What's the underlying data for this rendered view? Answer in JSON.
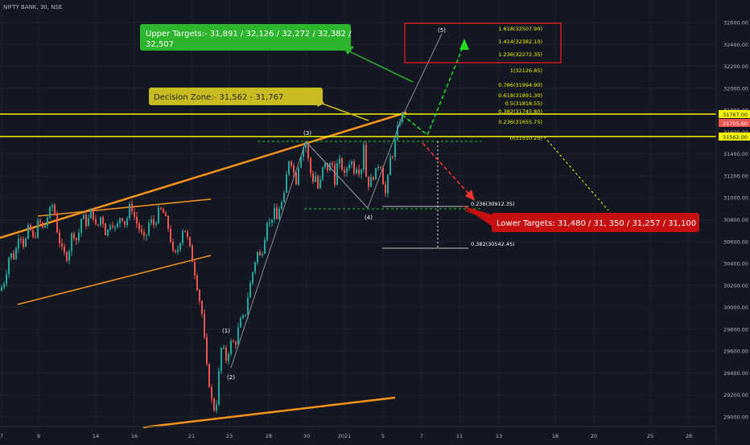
{
  "header": {
    "symbol_title": "NIFTY BANK, 30, NSE"
  },
  "colors": {
    "background": "#131722",
    "grid": "#1e2230",
    "up": "#26a69a",
    "down": "#ef5350",
    "channel": "#f7931a",
    "zone_line": "#f5f500",
    "wave_line": "#8a8f99",
    "green_arrow": "#22dd22",
    "red_arrow": "#ff3333",
    "upper_box_bg": "#2db52d",
    "decision_box_bg": "#c8bb22",
    "lower_box_bg": "#c60f10",
    "target_box_border": "#ff2020",
    "fib_text": "#f5f500",
    "axis_text": "#b2b5be"
  },
  "callouts": {
    "upper_targets": {
      "line1": "Upper Targets:- 31,891 / 32,126 / 32,272 / 32,382 /",
      "line2": "32,507"
    },
    "decision_zone": "Decision Zone:- 31,562 - 31,767",
    "lower_targets": "Lower Targets: 31,480 / 31, 350 / 31,257 / 31,100"
  },
  "fib_levels_upper": [
    "1.618(32507.90)",
    "1.414(32382.10)",
    "1.236(32272.35)",
    "1(32126.85)",
    "0.786(31994.90)",
    "0.618(31891.30)",
    "0.5(31818.55)",
    "0.382(31745.80)",
    "0.236(31655.75)",
    "0(31510.25)"
  ],
  "fib_levels_lower": [
    "0.236(30912.35)",
    "0.382(30542.45)"
  ],
  "wave_labels": [
    "(1)",
    "(2)",
    "(3)",
    "(4)",
    "(5)"
  ],
  "price_labels": {
    "upper_zone": "31767.00",
    "last_price": "31705.60",
    "lower_zone": "31562.00"
  },
  "chart_data": {
    "type": "candlestick",
    "title": "NIFTY BANK, 30, NSE",
    "ylim": [
      28900,
      32750
    ],
    "y_ticks": [
      "32600.00",
      "32400.00",
      "32200.00",
      "32000.00",
      "31800.00",
      "31600.00",
      "31400.00",
      "31200.00",
      "31000.00",
      "30800.00",
      "30600.00",
      "30400.00",
      "30200.00",
      "30000.00",
      "29800.00",
      "29600.00",
      "29400.00",
      "29200.00",
      "29000.00"
    ],
    "x_ticks": [
      "7",
      "9",
      "14",
      "16",
      "21",
      "23",
      "28",
      "30",
      "2021",
      "5",
      "7",
      "11",
      "13",
      "18",
      "20",
      "25",
      "28"
    ],
    "zone_levels": [
      31767.0,
      31562.0
    ],
    "last_price": 31705.6,
    "series_path": [
      [
        0,
        30150
      ],
      [
        6,
        30250
      ],
      [
        12,
        30500
      ],
      [
        18,
        30450
      ],
      [
        24,
        30700
      ],
      [
        30,
        30550
      ],
      [
        36,
        30750
      ],
      [
        42,
        30600
      ],
      [
        48,
        30800
      ],
      [
        54,
        30700
      ],
      [
        60,
        30850
      ],
      [
        66,
        30950
      ],
      [
        72,
        30650
      ],
      [
        78,
        30500
      ],
      [
        84,
        30450
      ],
      [
        90,
        30700
      ],
      [
        96,
        30600
      ],
      [
        102,
        30850
      ],
      [
        108,
        30750
      ],
      [
        114,
        30900
      ],
      [
        120,
        30700
      ],
      [
        126,
        30850
      ],
      [
        132,
        30650
      ],
      [
        138,
        30800
      ],
      [
        144,
        30700
      ],
      [
        150,
        30850
      ],
      [
        156,
        30750
      ],
      [
        162,
        30950
      ],
      [
        168,
        30800
      ],
      [
        174,
        30700
      ],
      [
        180,
        30600
      ],
      [
        186,
        30800
      ],
      [
        192,
        30750
      ],
      [
        198,
        30900
      ],
      [
        204,
        30850
      ],
      [
        210,
        30700
      ],
      [
        216,
        30450
      ],
      [
        222,
        30550
      ],
      [
        228,
        30750
      ],
      [
        234,
        30600
      ],
      [
        240,
        30400
      ],
      [
        246,
        30150
      ],
      [
        252,
        29900
      ],
      [
        256,
        29500
      ],
      [
        260,
        29300
      ],
      [
        264,
        29100
      ],
      [
        268,
        29050
      ],
      [
        272,
        29400
      ],
      [
        276,
        29700
      ],
      [
        280,
        29500
      ],
      [
        284,
        29600
      ],
      [
        288,
        29700
      ],
      [
        292,
        29650
      ],
      [
        296,
        29800
      ],
      [
        300,
        29900
      ],
      [
        304,
        29900
      ],
      [
        308,
        30100
      ],
      [
        312,
        30250
      ],
      [
        316,
        30400
      ],
      [
        320,
        30500
      ],
      [
        324,
        30450
      ],
      [
        328,
        30600
      ],
      [
        332,
        30800
      ],
      [
        336,
        30750
      ],
      [
        340,
        30900
      ],
      [
        344,
        30800
      ],
      [
        348,
        30950
      ],
      [
        352,
        30950
      ],
      [
        356,
        31200
      ],
      [
        360,
        31400
      ],
      [
        364,
        31250
      ],
      [
        368,
        31150
      ],
      [
        372,
        31350
      ],
      [
        376,
        31450
      ],
      [
        380,
        31500
      ],
      [
        384,
        31300
      ],
      [
        388,
        31150
      ],
      [
        392,
        31200
      ],
      [
        396,
        31050
      ],
      [
        400,
        31250
      ],
      [
        404,
        31300
      ],
      [
        408,
        31250
      ],
      [
        412,
        31350
      ],
      [
        416,
        31150
      ],
      [
        420,
        31350
      ],
      [
        424,
        31300
      ],
      [
        428,
        31200
      ],
      [
        432,
        31300
      ],
      [
        436,
        31350
      ],
      [
        440,
        31250
      ],
      [
        444,
        31300
      ],
      [
        448,
        31200
      ],
      [
        452,
        31500
      ],
      [
        456,
        31100
      ],
      [
        460,
        31150
      ],
      [
        464,
        31200
      ],
      [
        468,
        31250
      ],
      [
        472,
        31350
      ],
      [
        476,
        31150
      ],
      [
        480,
        31000
      ],
      [
        484,
        31350
      ],
      [
        488,
        31400
      ],
      [
        492,
        31550
      ],
      [
        496,
        31700
      ],
      [
        500,
        31750
      ]
    ]
  }
}
